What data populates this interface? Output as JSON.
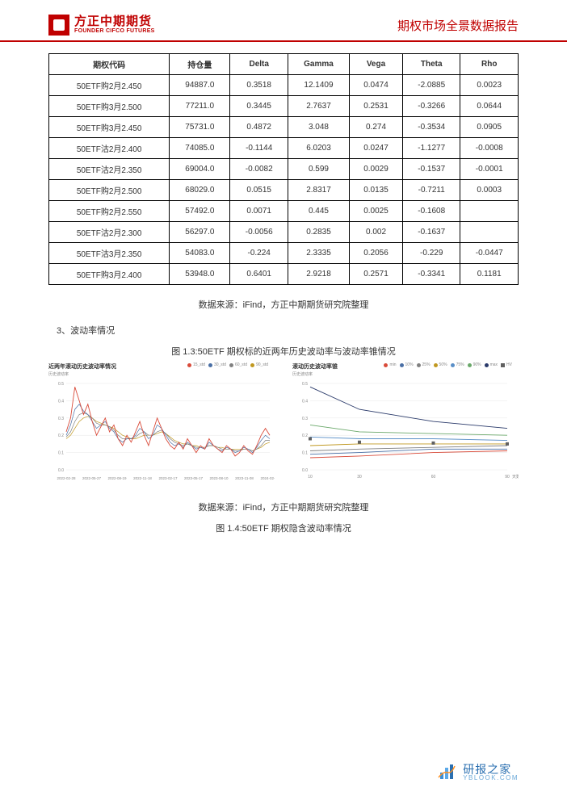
{
  "header": {
    "logo_cn": "方正中期期货",
    "logo_en": "FOUNDER CIFCO FUTURES",
    "report_title": "期权市场全景数据报告"
  },
  "greeks_table": {
    "columns": [
      "期权代码",
      "持仓量",
      "Delta",
      "Gamma",
      "Vega",
      "Theta",
      "Rho"
    ],
    "rows": [
      [
        "50ETF购2月2.450",
        "94887.0",
        "0.3518",
        "12.1409",
        "0.0474",
        "-2.0885",
        "0.0023"
      ],
      [
        "50ETF购3月2.500",
        "77211.0",
        "0.3445",
        "2.7637",
        "0.2531",
        "-0.3266",
        "0.0644"
      ],
      [
        "50ETF购3月2.450",
        "75731.0",
        "0.4872",
        "3.048",
        "0.274",
        "-0.3534",
        "0.0905"
      ],
      [
        "50ETF沽2月2.400",
        "74085.0",
        "-0.1144",
        "6.0203",
        "0.0247",
        "-1.1277",
        "-0.0008"
      ],
      [
        "50ETF沽2月2.350",
        "69004.0",
        "-0.0082",
        "0.599",
        "0.0029",
        "-0.1537",
        "-0.0001"
      ],
      [
        "50ETF购2月2.500",
        "68029.0",
        "0.0515",
        "2.8317",
        "0.0135",
        "-0.7211",
        "0.0003"
      ],
      [
        "50ETF购2月2.550",
        "57492.0",
        "0.0071",
        "0.445",
        "0.0025",
        "-0.1608",
        ""
      ],
      [
        "50ETF沽2月2.300",
        "56297.0",
        "-0.0056",
        "0.2835",
        "0.002",
        "-0.1637",
        ""
      ],
      [
        "50ETF沽3月2.350",
        "54083.0",
        "-0.224",
        "2.3335",
        "0.2056",
        "-0.229",
        "-0.0447"
      ],
      [
        "50ETF购3月2.400",
        "53948.0",
        "0.6401",
        "2.9218",
        "0.2571",
        "-0.3341",
        "0.1181"
      ]
    ],
    "cell_font_size": 10,
    "border_color": "#000000"
  },
  "source_text": "数据来源：iFind，方正中期期货研究院整理",
  "section_label": "3、波动率情况",
  "figure_1_3_caption": "图 1.3:50ETF 期权标的近两年历史波动率与波动率锥情况",
  "figure_1_4_caption": "图 1.4:50ETF 期权隐含波动率情况",
  "chart_left": {
    "type": "line",
    "title": "近两年滚动历史波动率情况",
    "ysubtitle": "历史波动率",
    "legend": [
      {
        "label": "15_std",
        "color": "#d94b3a"
      },
      {
        "label": "30_std",
        "color": "#4a6fa5"
      },
      {
        "label": "60_std",
        "color": "#808080"
      },
      {
        "label": "90_std",
        "color": "#c09820"
      }
    ],
    "ylim": [
      0,
      0.5
    ],
    "yticks": [
      0,
      0.1,
      0.2,
      0.3,
      0.4,
      0.5
    ],
    "xticks": [
      "2022-02-28",
      "2022-05-27",
      "2022-08-19",
      "2022-11-18",
      "2023-02-17",
      "2023-05-17",
      "2023-08-10",
      "2023-11-08",
      "2024-02-01"
    ],
    "series": {
      "15_std": [
        0.22,
        0.3,
        0.48,
        0.4,
        0.32,
        0.38,
        0.28,
        0.2,
        0.25,
        0.3,
        0.22,
        0.26,
        0.18,
        0.14,
        0.2,
        0.16,
        0.22,
        0.28,
        0.2,
        0.14,
        0.22,
        0.3,
        0.24,
        0.18,
        0.14,
        0.12,
        0.16,
        0.12,
        0.18,
        0.14,
        0.1,
        0.14,
        0.12,
        0.18,
        0.14,
        0.12,
        0.1,
        0.14,
        0.12,
        0.08,
        0.1,
        0.14,
        0.11,
        0.09,
        0.14,
        0.2,
        0.24,
        0.2
      ],
      "30_std": [
        0.2,
        0.26,
        0.35,
        0.38,
        0.34,
        0.32,
        0.28,
        0.24,
        0.26,
        0.28,
        0.24,
        0.22,
        0.18,
        0.16,
        0.18,
        0.18,
        0.2,
        0.24,
        0.22,
        0.18,
        0.2,
        0.26,
        0.24,
        0.2,
        0.16,
        0.14,
        0.15,
        0.13,
        0.16,
        0.14,
        0.12,
        0.13,
        0.12,
        0.16,
        0.14,
        0.12,
        0.11,
        0.13,
        0.12,
        0.1,
        0.11,
        0.13,
        0.12,
        0.1,
        0.13,
        0.17,
        0.2,
        0.18
      ],
      "60_std": [
        0.19,
        0.22,
        0.28,
        0.32,
        0.33,
        0.32,
        0.3,
        0.27,
        0.26,
        0.26,
        0.25,
        0.23,
        0.2,
        0.18,
        0.18,
        0.18,
        0.19,
        0.21,
        0.22,
        0.2,
        0.2,
        0.22,
        0.23,
        0.21,
        0.18,
        0.16,
        0.15,
        0.14,
        0.15,
        0.14,
        0.13,
        0.13,
        0.13,
        0.14,
        0.14,
        0.13,
        0.12,
        0.12,
        0.12,
        0.11,
        0.11,
        0.12,
        0.12,
        0.11,
        0.12,
        0.14,
        0.17,
        0.17
      ],
      "90_std": [
        0.18,
        0.2,
        0.24,
        0.28,
        0.3,
        0.31,
        0.3,
        0.28,
        0.27,
        0.26,
        0.25,
        0.24,
        0.22,
        0.2,
        0.19,
        0.18,
        0.18,
        0.19,
        0.2,
        0.2,
        0.2,
        0.21,
        0.22,
        0.21,
        0.19,
        0.17,
        0.16,
        0.15,
        0.15,
        0.14,
        0.14,
        0.13,
        0.13,
        0.14,
        0.14,
        0.13,
        0.13,
        0.12,
        0.12,
        0.12,
        0.12,
        0.12,
        0.12,
        0.11,
        0.12,
        0.13,
        0.15,
        0.16
      ]
    },
    "background_color": "#ffffff",
    "grid_color": "#e8e8e8"
  },
  "chart_right": {
    "type": "line",
    "title": "滚动历史波动率锥",
    "ysubtitle": "历史波动率",
    "legend": [
      {
        "label": "min",
        "color": "#d94b3a"
      },
      {
        "label": "10%",
        "color": "#4a6fa5"
      },
      {
        "label": "25%",
        "color": "#808080"
      },
      {
        "label": "50%",
        "color": "#c09820"
      },
      {
        "label": "75%",
        "color": "#5a8fc7"
      },
      {
        "label": "90%",
        "color": "#6aa86a"
      },
      {
        "label": "max",
        "color": "#2a3a6a"
      },
      {
        "label": "HV",
        "color": "#606060",
        "marker": true
      }
    ],
    "ylim": [
      0,
      0.5
    ],
    "yticks": [
      0,
      0.1,
      0.2,
      0.3,
      0.4,
      0.5
    ],
    "xticks": [
      10,
      30,
      60,
      90
    ],
    "xlabel": "天数",
    "series_x": [
      10,
      30,
      60,
      90
    ],
    "series": {
      "min": [
        0.07,
        0.08,
        0.1,
        0.11
      ],
      "p10": [
        0.09,
        0.1,
        0.12,
        0.12
      ],
      "p25": [
        0.11,
        0.12,
        0.13,
        0.14
      ],
      "p50": [
        0.14,
        0.15,
        0.15,
        0.15
      ],
      "p75": [
        0.19,
        0.18,
        0.18,
        0.17
      ],
      "p90": [
        0.26,
        0.22,
        0.21,
        0.2
      ],
      "max": [
        0.48,
        0.35,
        0.28,
        0.24
      ]
    },
    "hv_points": {
      "x": [
        10,
        30,
        60,
        90
      ],
      "y": [
        0.18,
        0.16,
        0.155,
        0.15
      ]
    },
    "colors": {
      "min": "#d94b3a",
      "p10": "#4a6fa5",
      "p25": "#808080",
      "p50": "#c09820",
      "p75": "#5a8fc7",
      "p90": "#6aa86a",
      "max": "#2a3a6a",
      "hv_marker": "#606060"
    },
    "background_color": "#ffffff",
    "grid_color": "#e8e8e8"
  },
  "watermark": {
    "cn": "研报之家",
    "en": "YBLOOK.COM",
    "icon_color": "#3a8fd8"
  }
}
